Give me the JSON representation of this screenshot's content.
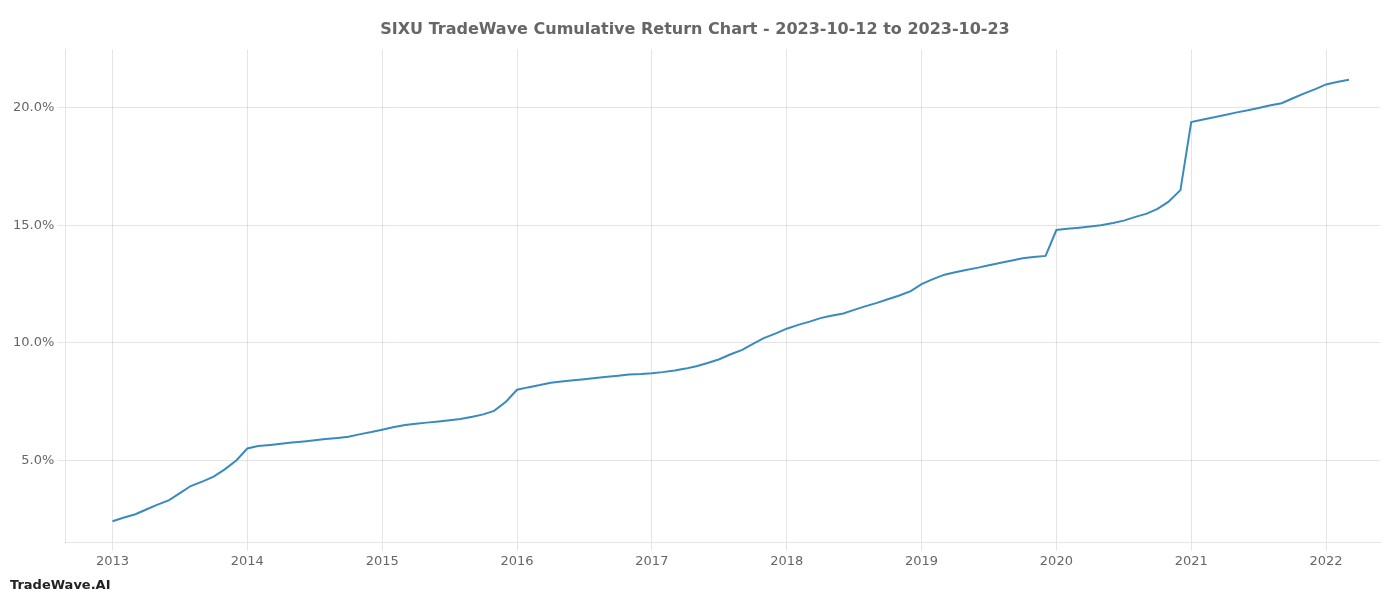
{
  "chart_data": {
    "type": "line",
    "title": "SIXU TradeWave Cumulative Return Chart - 2023-10-12 to 2023-10-23",
    "annotations": [
      "TradeWave.AI"
    ],
    "color": "#3a8abf",
    "x": [
      2013.0,
      2013.08,
      2013.17,
      2013.25,
      2013.33,
      2013.42,
      2013.5,
      2013.58,
      2013.67,
      2013.75,
      2013.83,
      2013.92,
      2014.0,
      2014.08,
      2014.17,
      2014.25,
      2014.33,
      2014.42,
      2014.5,
      2014.58,
      2014.67,
      2014.75,
      2014.83,
      2014.92,
      2015.0,
      2015.08,
      2015.17,
      2015.25,
      2015.33,
      2015.42,
      2015.5,
      2015.58,
      2015.67,
      2015.75,
      2015.83,
      2015.92,
      2016.0,
      2016.08,
      2016.17,
      2016.25,
      2016.33,
      2016.42,
      2016.5,
      2016.58,
      2016.67,
      2016.75,
      2016.83,
      2016.92,
      2017.0,
      2017.08,
      2017.17,
      2017.25,
      2017.33,
      2017.42,
      2017.5,
      2017.58,
      2017.67,
      2017.75,
      2017.83,
      2017.92,
      2018.0,
      2018.08,
      2018.17,
      2018.25,
      2018.33,
      2018.42,
      2018.5,
      2018.58,
      2018.67,
      2018.75,
      2018.83,
      2018.92,
      2019.0,
      2019.08,
      2019.17,
      2019.25,
      2019.33,
      2019.42,
      2019.5,
      2019.58,
      2019.67,
      2019.75,
      2019.83,
      2019.92,
      2020.0,
      2020.08,
      2020.17,
      2020.25,
      2020.33,
      2020.42,
      2020.5,
      2020.58,
      2020.67,
      2020.75,
      2020.83,
      2020.92,
      2021.0,
      2021.08,
      2021.17,
      2021.25,
      2021.33,
      2021.42,
      2021.5,
      2021.58,
      2021.67,
      2021.75,
      2021.83,
      2021.92,
      2022.0,
      2022.08,
      2022.17
    ],
    "values": [
      2.4,
      2.55,
      2.7,
      2.9,
      3.1,
      3.3,
      3.6,
      3.9,
      4.1,
      4.3,
      4.6,
      5.0,
      5.5,
      5.6,
      5.65,
      5.7,
      5.75,
      5.8,
      5.85,
      5.9,
      5.95,
      6.0,
      6.1,
      6.2,
      6.3,
      6.4,
      6.5,
      6.55,
      6.6,
      6.65,
      6.7,
      6.75,
      6.85,
      6.95,
      7.1,
      7.5,
      8.0,
      8.1,
      8.2,
      8.3,
      8.35,
      8.4,
      8.45,
      8.5,
      8.55,
      8.6,
      8.65,
      8.67,
      8.7,
      8.75,
      8.82,
      8.9,
      9.0,
      9.15,
      9.3,
      9.5,
      9.7,
      9.95,
      10.2,
      10.4,
      10.6,
      10.75,
      10.9,
      11.05,
      11.15,
      11.25,
      11.4,
      11.55,
      11.7,
      11.85,
      12.0,
      12.2,
      12.5,
      12.7,
      12.9,
      13.0,
      13.1,
      13.2,
      13.3,
      13.4,
      13.5,
      13.6,
      13.65,
      13.7,
      14.8,
      14.85,
      14.9,
      14.95,
      15.0,
      15.1,
      15.2,
      15.35,
      15.5,
      15.7,
      16.0,
      16.5,
      19.4,
      19.5,
      19.6,
      19.7,
      19.8,
      19.9,
      20.0,
      20.1,
      20.2,
      20.4,
      20.6,
      20.8,
      21.0,
      21.1,
      21.2
    ],
    "xlim": [
      2012.65,
      2022.4
    ],
    "ylim": [
      1.5,
      22.5
    ],
    "xticks": [
      2013,
      2014,
      2015,
      2016,
      2017,
      2018,
      2019,
      2020,
      2021,
      2022
    ],
    "yticks": [
      {
        "value": 5.0,
        "label": "5.0%"
      },
      {
        "value": 10.0,
        "label": "10.0%"
      },
      {
        "value": 15.0,
        "label": "15.0%"
      },
      {
        "value": 20.0,
        "label": "20.0%"
      }
    ],
    "grid": true
  }
}
